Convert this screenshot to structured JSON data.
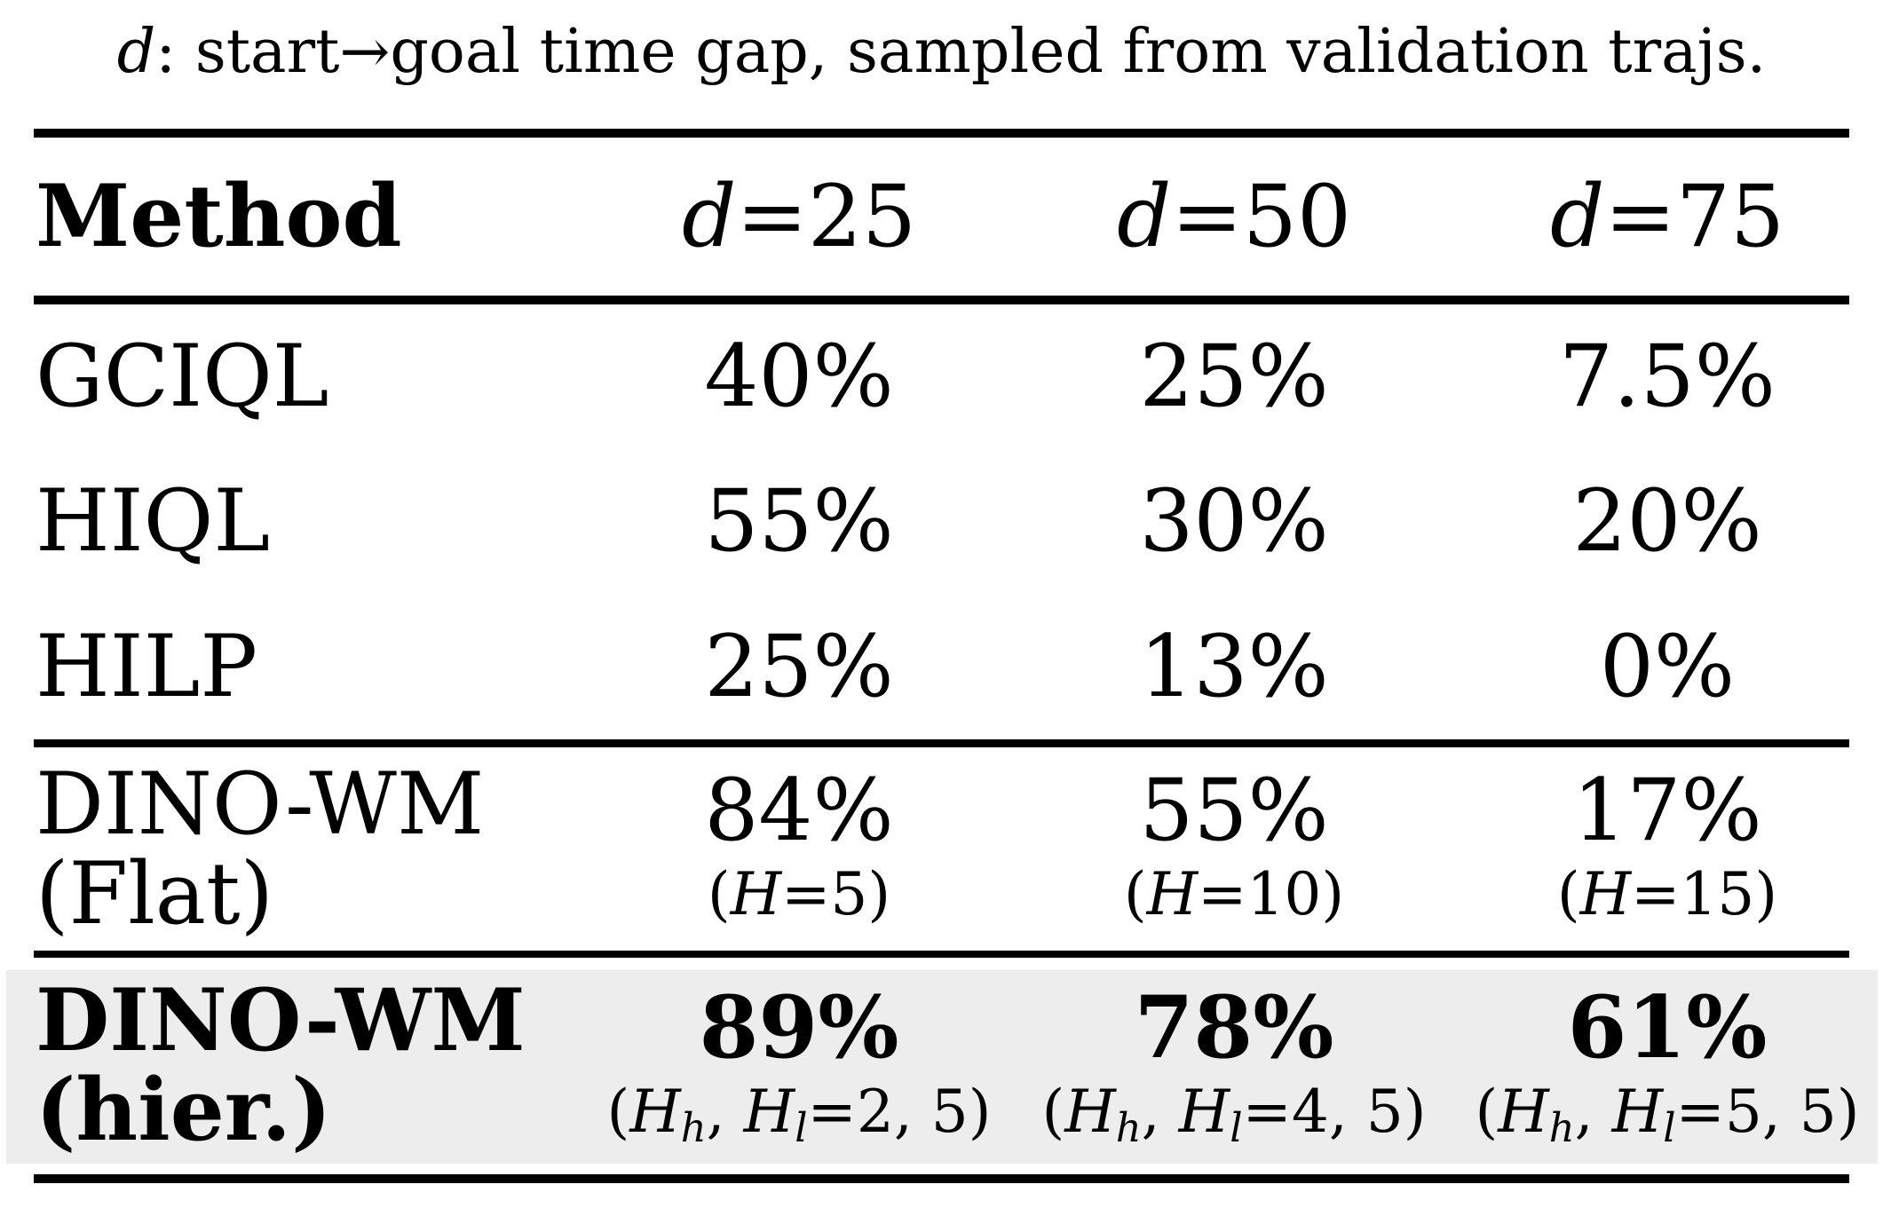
{
  "caption": {
    "variable": "d",
    "text": ": start→goal time gap, sampled from validation trajs."
  },
  "header": {
    "method": "Method",
    "cols": [
      "d=25",
      "d=50",
      "d=75"
    ]
  },
  "rows": [
    {
      "name": "GCIQL",
      "values": [
        "40%",
        "25%",
        "7.5%"
      ]
    },
    {
      "name": "HIQL",
      "values": [
        "55%",
        "30%",
        "20%"
      ]
    },
    {
      "name": "HILP",
      "values": [
        "25%",
        "13%",
        "0%"
      ]
    }
  ],
  "flat_row": {
    "name_line1": "DINO-WM",
    "name_line2": "(Flat)",
    "values": [
      {
        "pct": "84%",
        "config": "(H=5)"
      },
      {
        "pct": "55%",
        "config": "(H=10)"
      },
      {
        "pct": "17%",
        "config": "(H=15)"
      }
    ]
  },
  "hier_row": {
    "name_line1": "DINO-WM",
    "name_line2": "(hier.)",
    "values": [
      {
        "pct": "89%",
        "config": "(H_h, H_l=2, 5)"
      },
      {
        "pct": "78%",
        "config": "(H_h, H_l=4, 5)"
      },
      {
        "pct": "61%",
        "config": "(H_h, H_l=5, 5)"
      }
    ]
  },
  "colors": {
    "highlight": "#ededed",
    "rule": "#000000",
    "text": "#000000"
  }
}
